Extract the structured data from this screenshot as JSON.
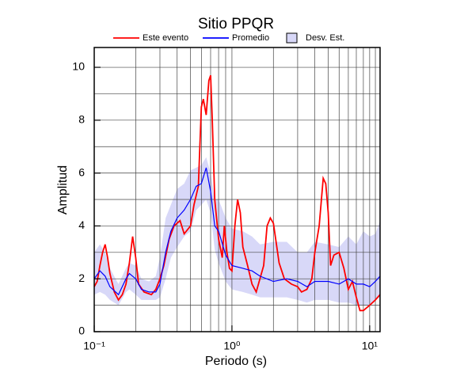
{
  "chart_data": {
    "type": "line",
    "title": "Sitio PPQR",
    "x_label": "Periodo (s)",
    "y_label": "Amplitud",
    "xscale": "log",
    "grid": true,
    "xlim": [
      0.1,
      11.9
    ],
    "ylim": [
      0,
      10.75
    ],
    "xticks": [
      {
        "value": 0.1,
        "label": "10⁻¹"
      },
      {
        "value": 1,
        "label": "10⁰"
      },
      {
        "value": 10,
        "label": "10¹"
      }
    ],
    "xminor": [
      0.2,
      0.3,
      0.4,
      0.5,
      0.6,
      0.7,
      0.8,
      0.9,
      2,
      3,
      4,
      5,
      6,
      7,
      8,
      9,
      11
    ],
    "yticks": [
      0,
      2,
      4,
      6,
      8,
      10
    ],
    "yminor": [
      1,
      3,
      5,
      7,
      9
    ],
    "series": [
      {
        "name": "Este evento",
        "color": "#ff0000",
        "x": [
          0.1,
          0.105,
          0.11,
          0.115,
          0.12,
          0.125,
          0.13,
          0.14,
          0.15,
          0.16,
          0.17,
          0.18,
          0.19,
          0.2,
          0.21,
          0.23,
          0.26,
          0.28,
          0.3,
          0.32,
          0.35,
          0.38,
          0.42,
          0.45,
          0.5,
          0.53,
          0.57,
          0.6,
          0.62,
          0.65,
          0.68,
          0.7,
          0.72,
          0.75,
          0.8,
          0.85,
          0.88,
          0.92,
          0.96,
          1.0,
          1.05,
          1.1,
          1.15,
          1.2,
          1.3,
          1.4,
          1.5,
          1.7,
          1.8,
          1.9,
          2.0,
          2.2,
          2.4,
          2.7,
          3.0,
          3.2,
          3.5,
          3.8,
          4.0,
          4.3,
          4.6,
          4.8,
          5.0,
          5.2,
          5.5,
          6.0,
          6.5,
          7.0,
          7.5,
          8.0,
          8.5,
          9.0,
          10,
          11,
          11.9
        ],
        "values": [
          1.7,
          1.9,
          2.5,
          3.0,
          3.3,
          2.8,
          2.2,
          1.5,
          1.2,
          1.4,
          1.8,
          2.6,
          3.6,
          2.8,
          1.8,
          1.5,
          1.4,
          1.6,
          2.0,
          2.5,
          3.5,
          4.0,
          4.2,
          3.7,
          4.0,
          4.8,
          5.5,
          8.5,
          8.8,
          8.2,
          9.5,
          9.7,
          8.0,
          5.0,
          3.5,
          2.8,
          4.0,
          3.0,
          2.4,
          2.3,
          4.0,
          5.0,
          4.5,
          3.2,
          2.5,
          1.8,
          1.5,
          2.5,
          4.0,
          4.3,
          4.1,
          2.6,
          2.0,
          1.8,
          1.7,
          1.5,
          1.6,
          2.0,
          3.0,
          4.0,
          5.8,
          5.6,
          4.5,
          2.5,
          2.9,
          3.0,
          2.4,
          1.6,
          1.9,
          1.3,
          0.8,
          0.8,
          1.0,
          1.2,
          1.4
        ]
      },
      {
        "name": "Promedio",
        "color": "#0000ff",
        "x": [
          0.1,
          0.11,
          0.12,
          0.13,
          0.15,
          0.17,
          0.18,
          0.2,
          0.22,
          0.25,
          0.28,
          0.3,
          0.33,
          0.36,
          0.4,
          0.45,
          0.5,
          0.55,
          0.6,
          0.65,
          0.7,
          0.75,
          0.8,
          0.9,
          1.0,
          1.2,
          1.4,
          1.6,
          2.0,
          2.5,
          3.0,
          3.5,
          4.0,
          5.0,
          6.0,
          7.0,
          8.0,
          9.0,
          10,
          11,
          11.9
        ],
        "values": [
          2.0,
          2.3,
          2.1,
          1.7,
          1.4,
          2.0,
          2.2,
          2.0,
          1.6,
          1.5,
          1.5,
          1.8,
          3.0,
          3.8,
          4.3,
          4.6,
          5.0,
          5.5,
          5.6,
          6.2,
          5.3,
          4.0,
          3.8,
          2.9,
          2.5,
          2.4,
          2.3,
          2.1,
          1.9,
          2.0,
          1.9,
          1.7,
          1.9,
          1.9,
          1.8,
          2.0,
          1.8,
          1.8,
          1.7,
          1.9,
          2.1
        ]
      },
      {
        "name": "Desv. Est.",
        "color": "#d8d8f8",
        "kind": "band",
        "x": [
          0.1,
          0.11,
          0.12,
          0.13,
          0.15,
          0.17,
          0.18,
          0.2,
          0.22,
          0.25,
          0.28,
          0.3,
          0.33,
          0.36,
          0.4,
          0.45,
          0.5,
          0.55,
          0.6,
          0.65,
          0.7,
          0.75,
          0.8,
          0.9,
          1.0,
          1.2,
          1.4,
          1.6,
          2.0,
          2.5,
          3.0,
          3.5,
          4.0,
          5.0,
          6.0,
          7.0,
          8.0,
          9.0,
          10,
          11,
          11.9
        ],
        "upper": [
          3.0,
          3.3,
          3.0,
          2.4,
          1.8,
          2.4,
          2.6,
          2.5,
          2.0,
          1.9,
          2.1,
          2.8,
          4.3,
          4.8,
          5.4,
          5.6,
          6.1,
          6.2,
          6.3,
          6.6,
          6.0,
          5.0,
          5.0,
          4.3,
          3.9,
          3.8,
          3.6,
          3.3,
          3.4,
          3.4,
          3.0,
          3.0,
          3.4,
          3.3,
          3.2,
          3.6,
          3.3,
          3.8,
          3.6,
          3.7,
          4.2
        ],
        "lower": [
          1.4,
          1.5,
          1.4,
          1.2,
          1.0,
          1.5,
          1.6,
          1.4,
          1.2,
          1.2,
          1.2,
          1.3,
          2.0,
          2.8,
          3.2,
          3.6,
          3.8,
          4.6,
          4.8,
          5.0,
          4.5,
          3.1,
          2.6,
          1.9,
          1.6,
          1.5,
          1.4,
          1.3,
          1.3,
          1.3,
          1.2,
          1.1,
          1.2,
          1.2,
          1.1,
          1.1,
          1.0,
          1.0,
          1.0,
          1.2,
          1.3
        ]
      }
    ]
  }
}
